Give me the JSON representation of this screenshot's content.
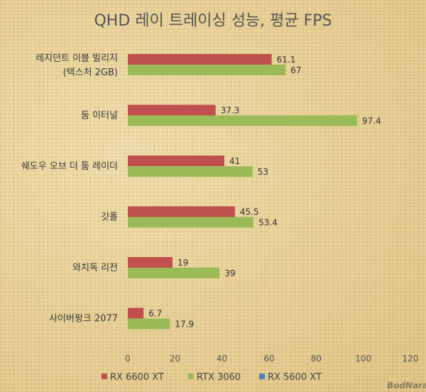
{
  "chart_data": {
    "type": "bar",
    "orientation": "horizontal",
    "title": "QHD 레이 트레이싱 성능, 평균 FPS",
    "categories": [
      [
        "레지던트 이블 빌리지",
        "(텍스처 2GB)"
      ],
      [
        "둠 이터널"
      ],
      [
        "쉐도우 오브 더 툼 레이더"
      ],
      [
        "갓폴"
      ],
      [
        "와치독 리전"
      ],
      [
        "사이버펑크 2077"
      ]
    ],
    "series": [
      {
        "name": "RX 6600 XT",
        "color": "#c0504d",
        "values": [
          61.1,
          37.3,
          41,
          45.5,
          19,
          6.7
        ],
        "labels": [
          "61.1",
          "37.3",
          "41",
          "45.5",
          "19",
          "6.7"
        ]
      },
      {
        "name": "RTX 3060",
        "color": "#9bbb59",
        "values": [
          67,
          97.4,
          53,
          53.4,
          39,
          17.9
        ],
        "labels": [
          "67",
          "97.4",
          "53",
          "53.4",
          "39",
          "17.9"
        ]
      },
      {
        "name": "RX 5600 XT",
        "color": "#4f81bd",
        "values": [
          null,
          null,
          null,
          null,
          null,
          null
        ],
        "labels": []
      }
    ],
    "xlim": [
      0,
      120
    ],
    "xticks": [
      0,
      20,
      40,
      60,
      80,
      100,
      120
    ],
    "grid": false,
    "legend": "bottom"
  },
  "watermark": "BodNara"
}
